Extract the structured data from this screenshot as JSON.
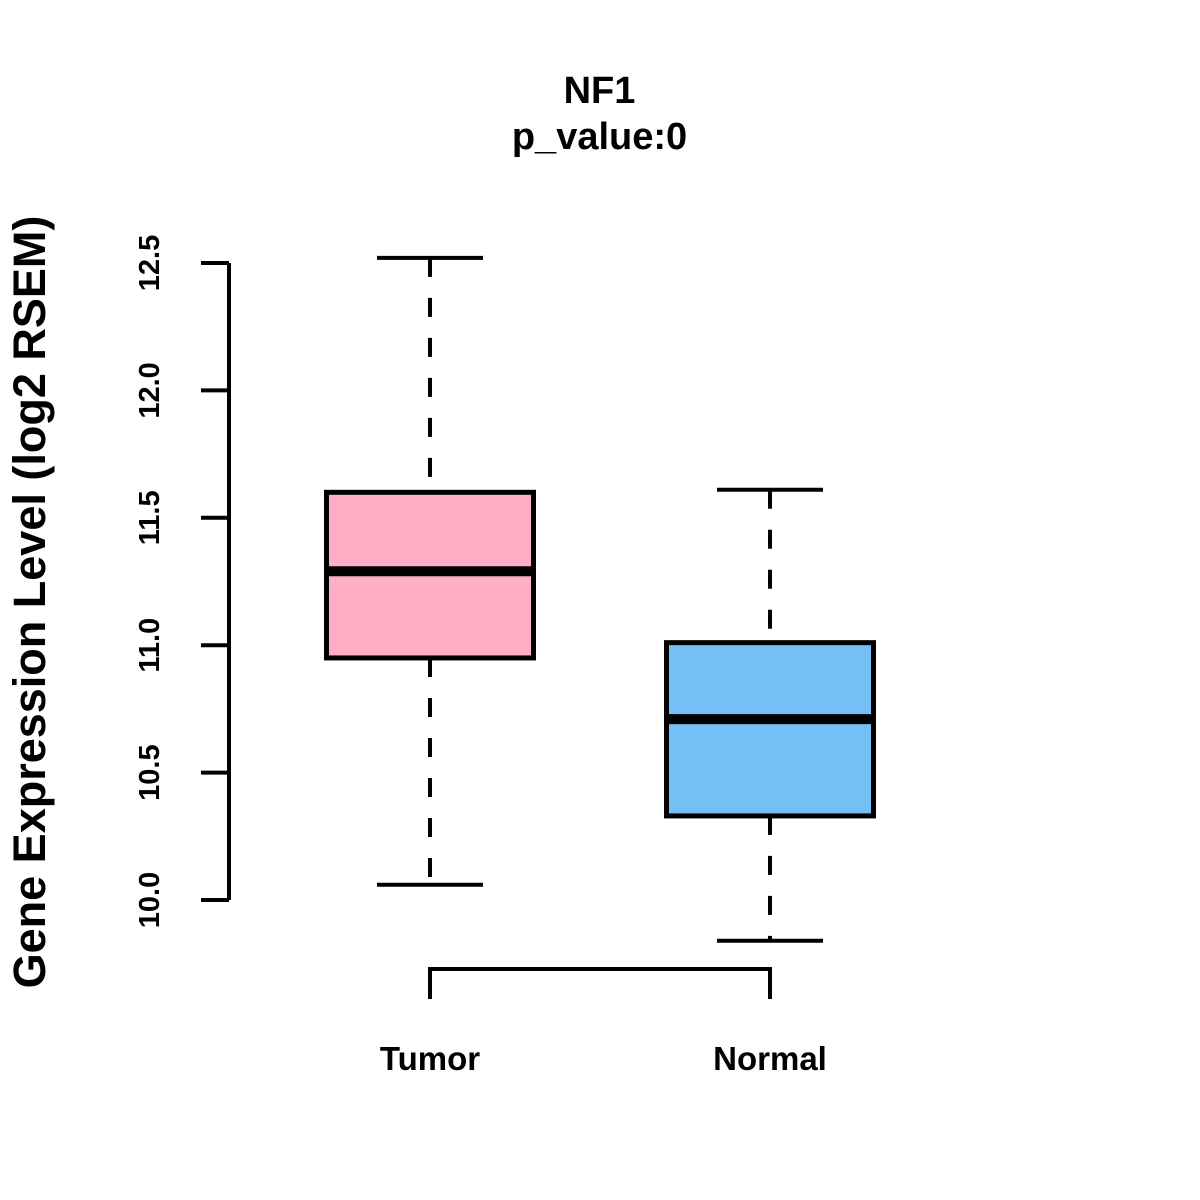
{
  "chart_data": {
    "type": "boxplot",
    "title": "NF1",
    "subtitle": "p_value:0",
    "ylabel": "Gene Expression Level (log2 RSEM)",
    "y_axis": {
      "tick_labels": [
        "10.0",
        "10.5",
        "11.0",
        "11.5",
        "12.0",
        "12.5"
      ],
      "tick_values": [
        10.0,
        10.5,
        11.0,
        11.5,
        12.0,
        12.5
      ],
      "range": [
        10.0,
        12.5
      ]
    },
    "groups": [
      {
        "label": "Tumor",
        "fill_color": "#FFAEC6",
        "stats": {
          "whisker_low": 10.06,
          "q1": 10.95,
          "median": 11.29,
          "q3": 11.6,
          "whisker_high": 12.52
        }
      },
      {
        "label": "Normal",
        "fill_color": "#74BFF4",
        "stats": {
          "whisker_low": 9.84,
          "q1": 10.33,
          "median": 10.71,
          "q3": 11.01,
          "whisker_high": 11.61
        }
      }
    ],
    "line_color": "#000000",
    "background_color": "#FFFFFF",
    "grid": "off",
    "legend": "none"
  }
}
